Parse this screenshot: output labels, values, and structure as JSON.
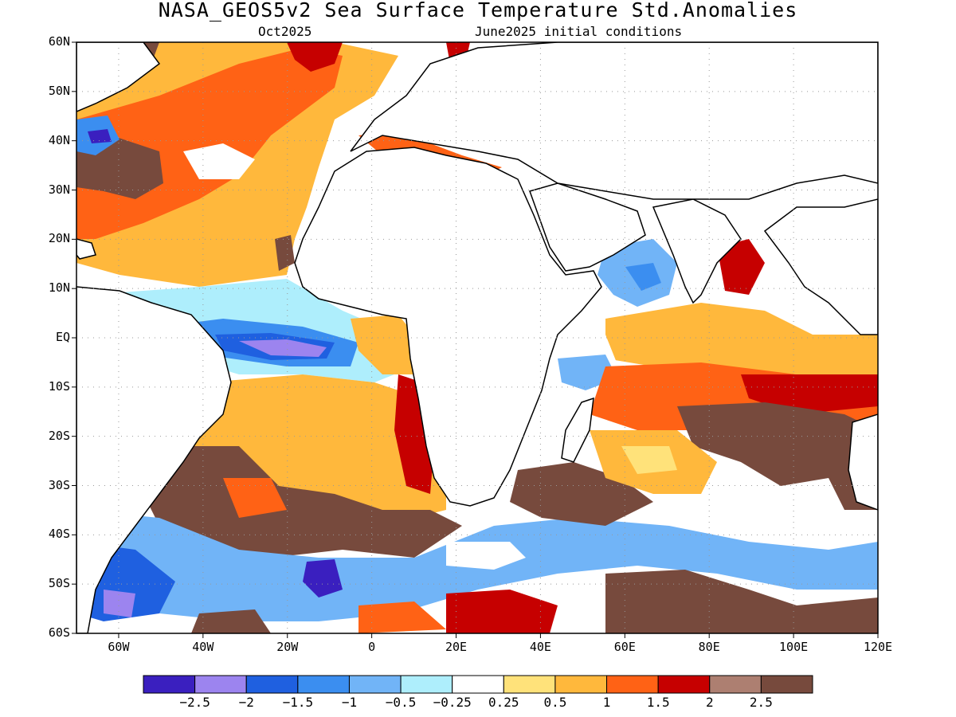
{
  "header": {
    "title": "NASA_GEOS5v2 Sea Surface Temperature Std.Anomalies",
    "valid_month": "Oct2025",
    "initial_conditions": "June2025 initial conditions"
  },
  "map": {
    "lon_range": [
      -70,
      120
    ],
    "lat_range": [
      -60,
      60
    ],
    "lat_ticks": [
      "60N",
      "50N",
      "40N",
      "30N",
      "20N",
      "10N",
      "EQ",
      "10S",
      "20S",
      "30S",
      "40S",
      "50S",
      "60S"
    ],
    "lon_ticks": [
      "60W",
      "40W",
      "20W",
      "0",
      "20E",
      "40E",
      "60E",
      "80E",
      "100E",
      "120E"
    ],
    "gridlines": "dotted"
  },
  "colorbar": {
    "colors": [
      "#3a1fbf",
      "#9c84ef",
      "#1f60e0",
      "#3b8ef0",
      "#71b4f7",
      "#aeeefc",
      "#ffffff",
      "#ffe27a",
      "#ffb83c",
      "#ff6215",
      "#c60000",
      "#ad7f71",
      "#774a3d"
    ],
    "tick_labels": [
      "-2.5",
      "-2",
      "-1.5",
      "-1",
      "-0.5",
      "-0.25",
      "0.25",
      "0.5",
      "1",
      "1.5",
      "2",
      "2.5"
    ]
  }
}
